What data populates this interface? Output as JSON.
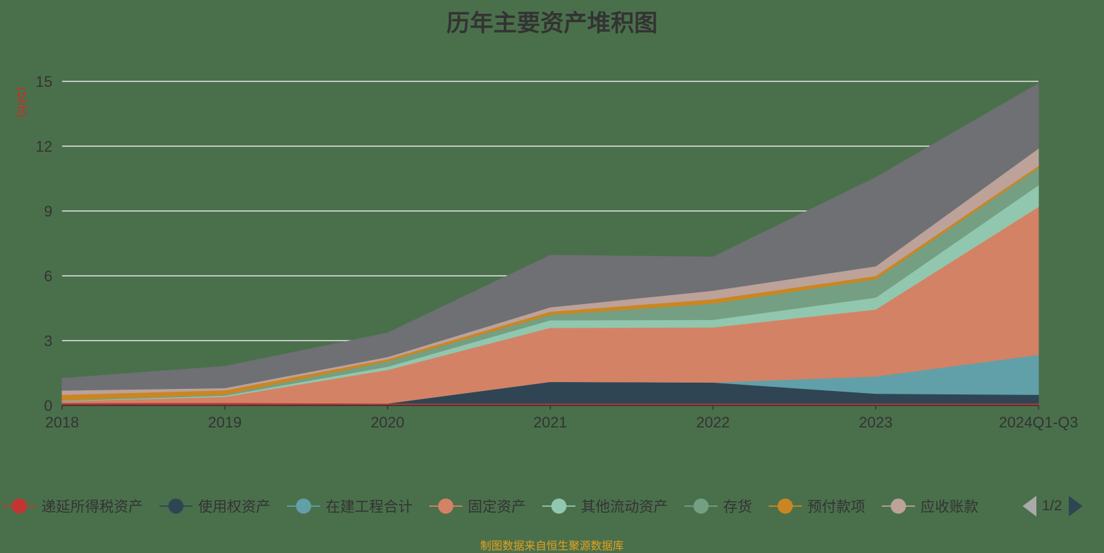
{
  "chart_data": {
    "type": "area",
    "stacked": true,
    "title": "历年主要资产堆积图",
    "y_unit": "(亿元)",
    "ylim": [
      0,
      15
    ],
    "y_ticks": [
      0,
      3,
      6,
      9,
      12,
      15
    ],
    "grid": true,
    "legend_position": "bottom",
    "legend_page": "1/2",
    "x": [
      "2018",
      "2019",
      "2020",
      "2021",
      "2022",
      "2023",
      "2024Q1-Q3"
    ],
    "series": [
      {
        "name": "递延所得税资产",
        "color": "#c23531",
        "values": [
          0.12,
          0.13,
          0.1,
          0.1,
          0.1,
          0.1,
          0.1
        ]
      },
      {
        "name": "使用权资产",
        "color": "#2f4554",
        "values": [
          0,
          0,
          0,
          1.0,
          0.97,
          0.45,
          0.4
        ]
      },
      {
        "name": "在建工程合计",
        "color": "#61a0a8",
        "values": [
          0,
          0,
          0,
          0,
          0.0,
          0.8,
          1.85
        ]
      },
      {
        "name": "固定资产",
        "color": "#d48265",
        "values": [
          0.08,
          0.28,
          1.55,
          2.5,
          2.55,
          3.1,
          6.85
        ]
      },
      {
        "name": "其他流动资产",
        "color": "#91c7ae",
        "values": [
          0.02,
          0.05,
          0.15,
          0.35,
          0.35,
          0.55,
          1.0
        ]
      },
      {
        "name": "存货",
        "color": "#749f83",
        "values": [
          0.03,
          0.05,
          0.25,
          0.25,
          0.75,
          0.85,
          0.8
        ]
      },
      {
        "name": "预付款项",
        "color": "#ca8622",
        "values": [
          0.25,
          0.2,
          0.1,
          0.15,
          0.2,
          0.15,
          0.1
        ]
      },
      {
        "name": "应收账款",
        "color": "#bda29a",
        "values": [
          0.2,
          0.1,
          0.1,
          0.2,
          0.4,
          0.45,
          0.8
        ]
      },
      {
        "name": "",
        "color": "#6e7074",
        "values": [
          0.55,
          1.0,
          1.1,
          2.4,
          1.55,
          4.1,
          3.0
        ]
      }
    ],
    "source_note": "制图数据来自恒生聚源数据库"
  }
}
